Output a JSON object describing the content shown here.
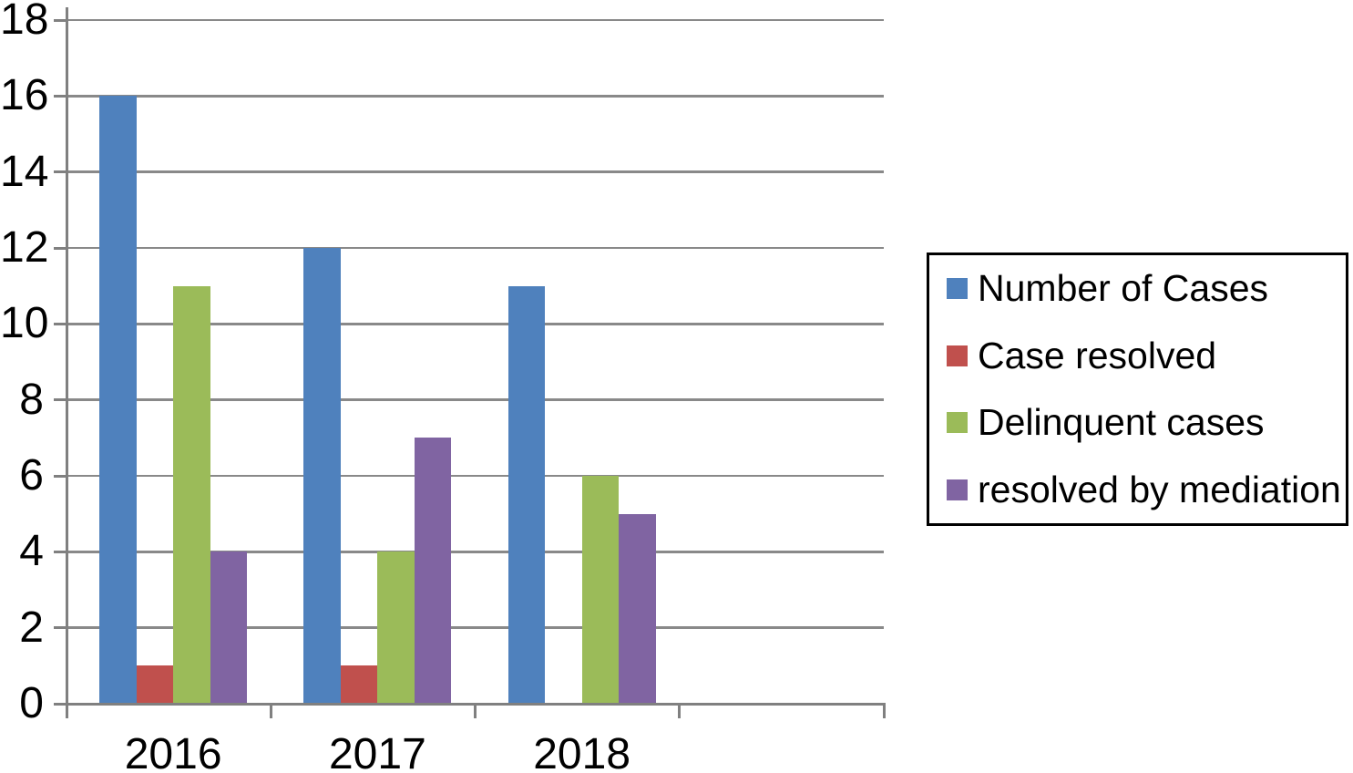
{
  "chart_data": {
    "type": "bar",
    "title": "",
    "xlabel": "",
    "ylabel": "",
    "categories": [
      "2016",
      "2017",
      "2018"
    ],
    "x_slot_count": 4,
    "series": [
      {
        "name": "Number of Cases",
        "color": "#4F81BD",
        "values": [
          16,
          12,
          11
        ]
      },
      {
        "name": "Case resolved",
        "color": "#C0504D",
        "values": [
          1,
          1,
          0
        ]
      },
      {
        "name": "Delinquent cases",
        "color": "#9BBB59",
        "values": [
          11,
          4,
          6
        ]
      },
      {
        "name": "resolved by mediation",
        "color": "#8064A2",
        "values": [
          4,
          7,
          5
        ]
      }
    ],
    "ylim": [
      0,
      18
    ],
    "ytick_step": 2,
    "y_tick_labels": [
      "0",
      "2",
      "4",
      "6",
      "8",
      "10",
      "12",
      "14",
      "16",
      "18"
    ],
    "grid": true,
    "legend_position": "right"
  },
  "colors": {
    "gridline": "#898989",
    "axis": "#808080",
    "text": "#000000",
    "legend_border": "#000000",
    "background": "#ffffff"
  }
}
